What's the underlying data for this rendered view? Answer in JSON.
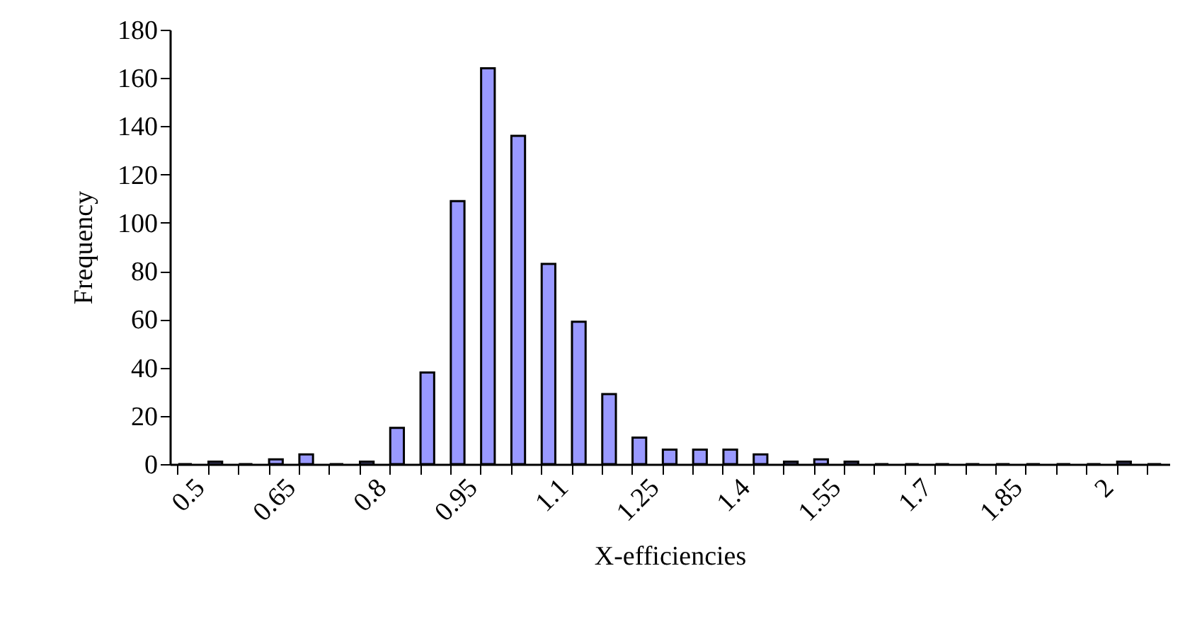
{
  "chart_data": {
    "type": "bar",
    "xlabel": "X-efficiencies",
    "ylabel": "Frequency",
    "categories": [
      "0.5",
      null,
      null,
      "0.65",
      null,
      null,
      "0.8",
      null,
      null,
      "0.95",
      null,
      null,
      "1.1",
      null,
      null,
      "1.25",
      null,
      null,
      "1.4",
      null,
      null,
      "1.55",
      null,
      null,
      "1.7",
      null,
      null,
      "1.85",
      null,
      null,
      "2",
      null,
      null
    ],
    "values": [
      0,
      1,
      0,
      2,
      4,
      0,
      1,
      15,
      38,
      109,
      164,
      136,
      83,
      59,
      29,
      11,
      6,
      6,
      6,
      4,
      1,
      2,
      1,
      0,
      0,
      0,
      0,
      0,
      0,
      0,
      0,
      1,
      0
    ],
    "color": "#9999ff",
    "ylim": [
      0,
      180
    ],
    "yticks": [
      0,
      20,
      40,
      60,
      80,
      100,
      120,
      140,
      160,
      180
    ],
    "grid": false
  }
}
